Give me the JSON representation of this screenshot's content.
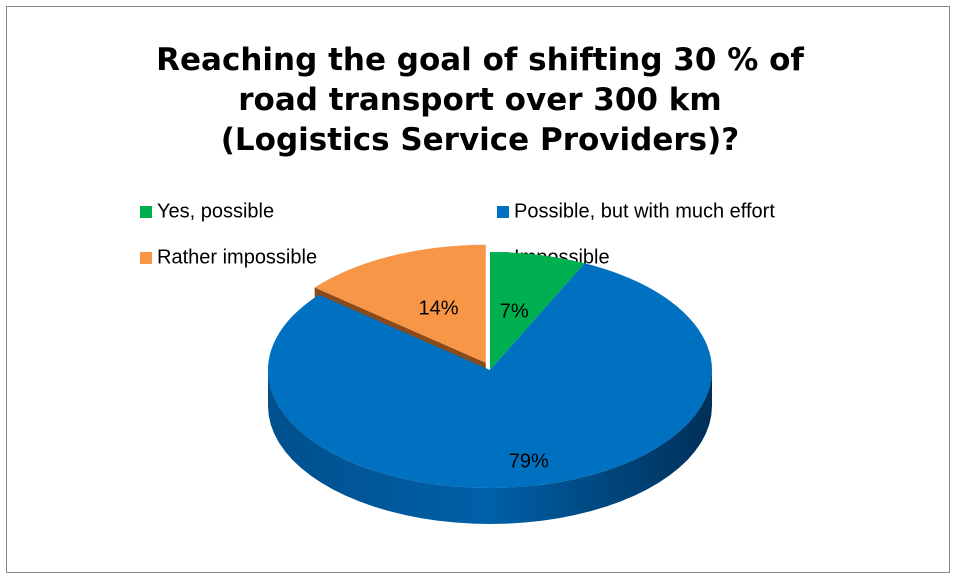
{
  "chart_data": {
    "type": "pie",
    "title": "Reaching the goal of shifting 30 % of road transport over 300 km (Logistics Service Providers)?",
    "categories": [
      "Yes, possible",
      "Possible, but with much effort",
      "Rather impossible",
      "Impossible"
    ],
    "values": [
      7,
      79,
      14,
      0
    ],
    "value_labels": [
      "7%",
      "79%",
      "14%",
      null
    ],
    "colors": [
      "#00b050",
      "#0070c0",
      "#f79646",
      "#8064a2"
    ],
    "legend": "top"
  }
}
